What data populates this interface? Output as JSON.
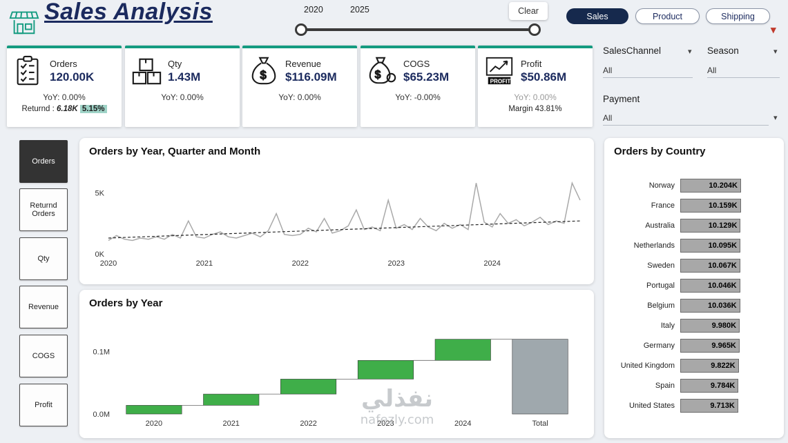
{
  "accent": "#149b80",
  "header": {
    "title": "Sales Analysis",
    "slider": {
      "start_label": "2020",
      "end_label": "2025",
      "clear": "Clear"
    },
    "nav": [
      {
        "label": "Sales",
        "active": true
      },
      {
        "label": "Product",
        "active": false
      },
      {
        "label": "Shipping",
        "active": false
      }
    ]
  },
  "kpis": [
    {
      "label": "Orders",
      "value": "120.00K",
      "yoy": "YoY: 0.00%",
      "return_prefix": "Returnd : ",
      "return_value": "6.18K",
      "return_pct": "5.15%"
    },
    {
      "label": "Qty",
      "value": "1.43M",
      "yoy": "YoY: 0.00%"
    },
    {
      "label": "Revenue",
      "value": "$116.09M",
      "yoy": "YoY: 0.00%"
    },
    {
      "label": "COGS",
      "value": "$65.23M",
      "yoy": "YoY: -0.00%"
    },
    {
      "label": "Profit",
      "value": "$50.86M",
      "yoy": "YoY: 0.00%",
      "margin": "Margin 43.81%"
    }
  ],
  "filters": {
    "sales_channel": {
      "label": "SalesChannel",
      "value": "All"
    },
    "season": {
      "label": "Season",
      "value": "All"
    },
    "payment": {
      "label": "Payment",
      "value": "All"
    }
  },
  "sidebar": {
    "items": [
      {
        "label": "Orders",
        "active": true
      },
      {
        "label": "Returnd Orders",
        "active": false
      },
      {
        "label": "Qty",
        "active": false
      },
      {
        "label": "Revenue",
        "active": false
      },
      {
        "label": "COGS",
        "active": false
      },
      {
        "label": "Profit",
        "active": false
      }
    ]
  },
  "panels": {
    "line_title": "Orders by Year, Quarter and Month",
    "waterfall_title": "Orders by Year",
    "country_title": "Orders by Country"
  },
  "watermark": {
    "arabic": "نفذلي",
    "latin": "nafezly.com"
  },
  "chart_data": [
    {
      "type": "line",
      "title": "Orders by Year, Quarter and Month",
      "x_unit": "month",
      "x_start": "2020-01",
      "year_ticks": [
        "2020",
        "2021",
        "2022",
        "2023",
        "2024"
      ],
      "ytick_labels": [
        "0K",
        "5K"
      ],
      "unit": "K",
      "ylim": [
        0,
        7
      ],
      "values": [
        1.1,
        1.5,
        1.2,
        1.1,
        1.3,
        1.2,
        1.4,
        1.2,
        1.6,
        1.3,
        2.7,
        1.4,
        1.3,
        1.6,
        1.8,
        1.4,
        1.3,
        1.5,
        1.7,
        1.4,
        1.9,
        3.3,
        1.6,
        1.5,
        1.6,
        2.1,
        1.8,
        2.9,
        1.7,
        1.9,
        2.3,
        3.6,
        2.0,
        2.2,
        1.9,
        4.4,
        2.1,
        2.4,
        2.0,
        2.9,
        2.2,
        1.9,
        2.5,
        2.1,
        2.4,
        2.0,
        5.8,
        2.6,
        2.2,
        3.3,
        2.5,
        2.8,
        2.3,
        2.6,
        3.0,
        2.4,
        2.7,
        2.5,
        5.8,
        4.4
      ],
      "trend": [
        1.3,
        2.7
      ],
      "line_color": "#a9a9a9",
      "trend_color": "#222222",
      "trend_style": "dashed",
      "legend": "off",
      "grid": "off"
    },
    {
      "type": "waterfall",
      "title": "Orders by Year",
      "categories": [
        "2020",
        "2021",
        "2022",
        "2023",
        "2024",
        "Total"
      ],
      "increments": [
        0.014,
        0.018,
        0.024,
        0.03,
        0.034
      ],
      "total": 0.12,
      "unit": "M",
      "ylim": [
        0,
        0.155
      ],
      "ytick_labels": [
        "0.0M",
        "0.1M"
      ],
      "ytick_values": [
        0,
        0.1
      ],
      "increase_color": "#3fae49",
      "total_color": "#9fa8ad",
      "grid": "off"
    },
    {
      "type": "bar",
      "title": "Orders by Country",
      "orientation": "horizontal",
      "categories": [
        "Norway",
        "France",
        "Australia",
        "Netherlands",
        "Sweden",
        "Portugal",
        "Belgium",
        "Italy",
        "Germany",
        "United Kingdom",
        "Spain",
        "United States"
      ],
      "values": [
        10.204,
        10.159,
        10.129,
        10.095,
        10.067,
        10.046,
        10.036,
        9.98,
        9.965,
        9.822,
        9.784,
        9.713
      ],
      "value_labels": [
        "10.204K",
        "10.159K",
        "10.129K",
        "10.095K",
        "10.067K",
        "10.046K",
        "10.036K",
        "9.980K",
        "9.965K",
        "9.822K",
        "9.784K",
        "9.713K"
      ],
      "unit": "K",
      "bar_color": "#a8a8a8"
    }
  ]
}
